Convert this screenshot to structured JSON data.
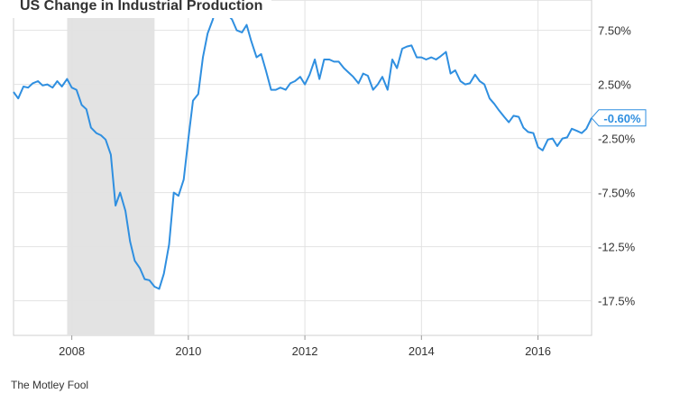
{
  "chart_data": {
    "type": "line",
    "title": "US Change in Industrial Production",
    "x_ticks": [
      "2008",
      "2010",
      "2012",
      "2014",
      "2016"
    ],
    "y_ticks": [
      "7.50%",
      "2.50%",
      "-2.50%",
      "-7.50%",
      "-12.5%",
      "-17.5%"
    ],
    "y_tick_values": [
      7.5,
      2.5,
      -2.5,
      -7.5,
      -12.5,
      -17.5
    ],
    "xlim": [
      2007.0,
      2016.92
    ],
    "ylim": [
      -20.7,
      10.3
    ],
    "shaded_region": {
      "start": 2007.92,
      "end": 2009.42
    },
    "last_value_label": "-0.60%",
    "series": [
      {
        "color": "#2f8fe0",
        "x": [
          2007.0,
          2007.08,
          2007.17,
          2007.25,
          2007.33,
          2007.42,
          2007.5,
          2007.58,
          2007.67,
          2007.75,
          2007.83,
          2007.92,
          2008.0,
          2008.08,
          2008.17,
          2008.25,
          2008.33,
          2008.42,
          2008.5,
          2008.58,
          2008.67,
          2008.75,
          2008.83,
          2008.92,
          2009.0,
          2009.08,
          2009.17,
          2009.25,
          2009.33,
          2009.42,
          2009.5,
          2009.58,
          2009.67,
          2009.75,
          2009.83,
          2009.92,
          2010.0,
          2010.08,
          2010.17,
          2010.25,
          2010.33,
          2010.42,
          2010.5,
          2010.58,
          2010.67,
          2010.75,
          2010.83,
          2010.92,
          2011.0,
          2011.08,
          2011.17,
          2011.25,
          2011.33,
          2011.42,
          2011.5,
          2011.58,
          2011.67,
          2011.75,
          2011.83,
          2011.92,
          2012.0,
          2012.08,
          2012.17,
          2012.25,
          2012.33,
          2012.42,
          2012.5,
          2012.58,
          2012.67,
          2012.75,
          2012.83,
          2012.92,
          2013.0,
          2013.08,
          2013.17,
          2013.25,
          2013.33,
          2013.42,
          2013.5,
          2013.58,
          2013.67,
          2013.75,
          2013.83,
          2013.92,
          2014.0,
          2014.08,
          2014.17,
          2014.25,
          2014.33,
          2014.42,
          2014.5,
          2014.58,
          2014.67,
          2014.75,
          2014.83,
          2014.92,
          2015.0,
          2015.08,
          2015.17,
          2015.25,
          2015.33,
          2015.42,
          2015.5,
          2015.58,
          2015.67,
          2015.75,
          2015.83,
          2015.92,
          2016.0,
          2016.08,
          2016.17,
          2016.25,
          2016.33,
          2016.42,
          2016.5,
          2016.58,
          2016.67,
          2016.75,
          2016.83,
          2016.92
        ],
        "y": [
          1.8,
          1.2,
          2.3,
          2.2,
          2.6,
          2.8,
          2.4,
          2.5,
          2.2,
          2.8,
          2.3,
          3.0,
          2.2,
          2.0,
          0.6,
          0.2,
          -1.5,
          -2.0,
          -2.2,
          -2.6,
          -4.0,
          -8.7,
          -7.5,
          -9.2,
          -12.0,
          -13.8,
          -14.5,
          -15.5,
          -15.6,
          -16.2,
          -16.4,
          -15.0,
          -12.3,
          -7.5,
          -7.8,
          -6.3,
          -2.5,
          1.0,
          1.6,
          5.0,
          7.2,
          8.5,
          10.2,
          10.0,
          9.0,
          8.5,
          7.5,
          7.3,
          8.0,
          6.5,
          5.0,
          5.3,
          3.8,
          2.0,
          2.0,
          2.2,
          2.0,
          2.6,
          2.8,
          3.2,
          2.5,
          3.4,
          4.8,
          3.0,
          4.8,
          4.8,
          4.6,
          4.6,
          4.0,
          3.6,
          3.2,
          2.6,
          3.5,
          3.3,
          2.0,
          2.5,
          3.2,
          2.0,
          4.8,
          4.0,
          5.8,
          6.0,
          6.1,
          5.0,
          5.0,
          4.8,
          5.0,
          4.8,
          5.1,
          5.5,
          3.5,
          3.8,
          2.8,
          2.5,
          2.6,
          3.4,
          2.8,
          2.5,
          1.2,
          0.7,
          0.1,
          -0.5,
          -1.0,
          -0.4,
          -0.5,
          -1.5,
          -1.9,
          -2.0,
          -3.3,
          -3.6,
          -2.6,
          -2.5,
          -3.2,
          -2.5,
          -2.4,
          -1.6,
          -1.8,
          -2.0,
          -1.6,
          -0.6
        ]
      }
    ]
  },
  "footer": {
    "brand": "The Motley Fool"
  }
}
